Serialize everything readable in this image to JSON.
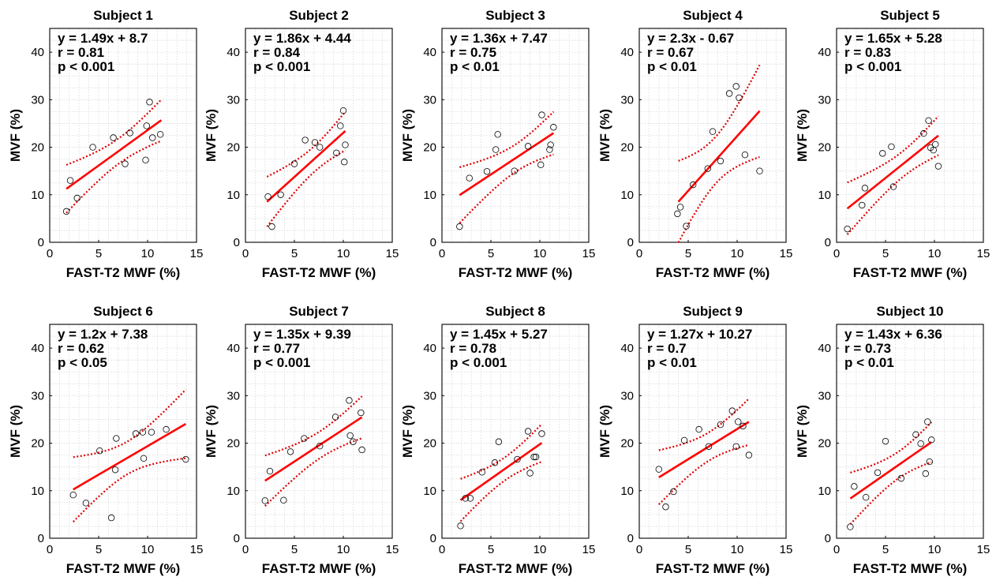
{
  "chart_data": [
    {
      "type": "scatter",
      "title": "Subject 1",
      "xlabel": "FAST-T2 MWF (%)",
      "ylabel": "MVF (%)",
      "xlim": [
        0,
        15
      ],
      "ylim": [
        0,
        45
      ],
      "xticks": [
        0,
        5,
        10,
        15
      ],
      "yticks": [
        0,
        10,
        20,
        30,
        40
      ],
      "equation": "y = 1.49x + 8.7",
      "r_text": "r = 0.81",
      "p_text": "p < 0.001",
      "slope": 1.49,
      "intercept": 8.7,
      "fit_x_range": [
        1.7,
        11.4
      ],
      "x": [
        1.7,
        2.1,
        2.8,
        4.4,
        6.5,
        7.7,
        8.2,
        9.8,
        9.9,
        10.2,
        10.5,
        11.3
      ],
      "y": [
        6.5,
        13,
        9.3,
        20,
        22,
        16.5,
        23,
        17.3,
        24.5,
        29.5,
        22,
        22.7
      ]
    },
    {
      "type": "scatter",
      "title": "Subject 2",
      "xlabel": "FAST-T2 MWF (%)",
      "ylabel": "MVF (%)",
      "xlim": [
        0,
        15
      ],
      "ylim": [
        0,
        45
      ],
      "xticks": [
        0,
        5,
        10,
        15
      ],
      "yticks": [
        0,
        10,
        20,
        30,
        40
      ],
      "equation": "y = 1.86x + 4.44",
      "r_text": "r = 0.84",
      "p_text": "p < 0.001",
      "slope": 1.86,
      "intercept": 4.44,
      "fit_x_range": [
        2.2,
        10.2
      ],
      "x": [
        2.3,
        2.7,
        3.6,
        5.0,
        6.1,
        7.1,
        7.6,
        9.3,
        9.7,
        10.0,
        10.1,
        10.2
      ],
      "y": [
        9.6,
        3.3,
        10,
        16.5,
        21.5,
        21,
        20,
        18.8,
        24.5,
        27.7,
        16.9,
        20.5
      ]
    },
    {
      "type": "scatter",
      "title": "Subject 3",
      "xlabel": "FAST-T2 MWF (%)",
      "ylabel": "MVF (%)",
      "xlim": [
        0,
        15
      ],
      "ylim": [
        0,
        45
      ],
      "xticks": [
        0,
        5,
        10,
        15
      ],
      "yticks": [
        0,
        10,
        20,
        30,
        40
      ],
      "equation": "y = 1.36x + 7.47",
      "r_text": "r = 0.75",
      "p_text": "p < 0.01",
      "slope": 1.36,
      "intercept": 7.47,
      "fit_x_range": [
        1.8,
        11.4
      ],
      "x": [
        1.8,
        2.8,
        4.6,
        5.5,
        5.7,
        7.4,
        8.8,
        10.1,
        10.2,
        11.0,
        11.1,
        11.4
      ],
      "y": [
        3.3,
        13.5,
        14.9,
        19.5,
        22.7,
        15,
        20.2,
        16.3,
        26.8,
        19.5,
        20.5,
        24.2
      ]
    },
    {
      "type": "scatter",
      "title": "Subject 4",
      "xlabel": "FAST-T2 MWF (%)",
      "ylabel": "MVF (%)",
      "xlim": [
        0,
        15
      ],
      "ylim": [
        0,
        45
      ],
      "xticks": [
        0,
        5,
        10,
        15
      ],
      "yticks": [
        0,
        10,
        20,
        30,
        40
      ],
      "equation": "y = 2.3x - 0.67",
      "r_text": "r = 0.67",
      "p_text": "p < 0.01",
      "slope": 2.3,
      "intercept": -0.67,
      "fit_x_range": [
        4.0,
        12.3
      ],
      "x": [
        3.9,
        4.2,
        4.8,
        5.5,
        7.0,
        7.5,
        8.3,
        9.2,
        9.9,
        10.2,
        10.8,
        12.3
      ],
      "y": [
        6.0,
        7.4,
        3.4,
        12.1,
        15.5,
        23.3,
        17.1,
        31.3,
        32.8,
        30.4,
        18.4,
        15.0
      ]
    },
    {
      "type": "scatter",
      "title": "Subject 5",
      "xlabel": "FAST-T2 MWF (%)",
      "ylabel": "MVF (%)",
      "xlim": [
        0,
        15
      ],
      "ylim": [
        0,
        45
      ],
      "xticks": [
        0,
        5,
        10,
        15
      ],
      "yticks": [
        0,
        10,
        20,
        30,
        40
      ],
      "equation": "y = 1.65x + 5.28",
      "r_text": "r = 0.83",
      "p_text": "p < 0.001",
      "slope": 1.65,
      "intercept": 5.28,
      "fit_x_range": [
        1.1,
        10.4
      ],
      "x": [
        1.1,
        2.6,
        2.9,
        4.7,
        5.6,
        5.8,
        8.9,
        9.4,
        9.6,
        9.9,
        10.1,
        10.4
      ],
      "y": [
        2.8,
        7.8,
        11.4,
        18.7,
        20.1,
        11.7,
        22.9,
        25.6,
        19.9,
        19.4,
        20.6,
        16
      ]
    },
    {
      "type": "scatter",
      "title": "Subject 6",
      "xlabel": "FAST-T2 MWF (%)",
      "ylabel": "MVF (%)",
      "xlim": [
        0,
        15
      ],
      "ylim": [
        0,
        45
      ],
      "xticks": [
        0,
        5,
        10,
        15
      ],
      "yticks": [
        0,
        10,
        20,
        30,
        40
      ],
      "equation": "y = 1.2x + 7.38",
      "r_text": "r = 0.62",
      "p_text": "p < 0.05",
      "slope": 1.2,
      "intercept": 7.38,
      "fit_x_range": [
        2.4,
        13.9
      ],
      "x": [
        2.4,
        3.7,
        5.1,
        6.3,
        6.7,
        6.8,
        8.8,
        9.5,
        9.6,
        10.4,
        11.9,
        13.9
      ],
      "y": [
        9.1,
        7.4,
        18.4,
        4.3,
        14.4,
        21,
        22,
        22.3,
        16.8,
        22.3,
        22.9,
        16.6
      ]
    },
    {
      "type": "scatter",
      "title": "Subject 7",
      "xlabel": "FAST-T2 MWF (%)",
      "ylabel": "MVF (%)",
      "xlim": [
        0,
        15
      ],
      "ylim": [
        0,
        45
      ],
      "xticks": [
        0,
        5,
        10,
        15
      ],
      "yticks": [
        0,
        10,
        20,
        30,
        40
      ],
      "equation": "y = 1.35x + 9.39",
      "r_text": "r = 0.77",
      "p_text": "p < 0.001",
      "slope": 1.35,
      "intercept": 9.39,
      "fit_x_range": [
        2.0,
        11.9
      ],
      "x": [
        2.0,
        2.5,
        3.9,
        4.6,
        6.0,
        7.6,
        9.2,
        10.6,
        10.7,
        11.0,
        11.8,
        11.9
      ],
      "y": [
        7.9,
        14.1,
        8.0,
        18.2,
        21,
        19.4,
        25.5,
        29,
        21.6,
        20.3,
        26.4,
        18.6
      ]
    },
    {
      "type": "scatter",
      "title": "Subject 8",
      "xlabel": "FAST-T2 MWF (%)",
      "ylabel": "MVF (%)",
      "xlim": [
        0,
        15
      ],
      "ylim": [
        0,
        45
      ],
      "xticks": [
        0,
        5,
        10,
        15
      ],
      "yticks": [
        0,
        10,
        20,
        30,
        40
      ],
      "equation": "y = 1.45x + 5.27",
      "r_text": "r = 0.78",
      "p_text": "p < 0.001",
      "slope": 1.45,
      "intercept": 5.27,
      "fit_x_range": [
        1.9,
        10.2
      ],
      "x": [
        1.9,
        2.4,
        2.9,
        4.1,
        5.4,
        5.8,
        7.7,
        8.8,
        9.0,
        9.4,
        9.6,
        10.2
      ],
      "y": [
        2.6,
        8.4,
        8.4,
        13.9,
        15.9,
        20.3,
        16.6,
        22.5,
        13.7,
        17.1,
        17.1,
        22
      ]
    },
    {
      "type": "scatter",
      "title": "Subject 9",
      "xlabel": "FAST-T2 MWF (%)",
      "ylabel": "MVF (%)",
      "xlim": [
        0,
        15
      ],
      "ylim": [
        0,
        45
      ],
      "xticks": [
        0,
        5,
        10,
        15
      ],
      "yticks": [
        0,
        10,
        20,
        30,
        40
      ],
      "equation": "y = 1.27x + 10.27",
      "r_text": "r = 0.7",
      "p_text": "p < 0.01",
      "slope": 1.27,
      "intercept": 10.27,
      "fit_x_range": [
        2.0,
        11.2
      ],
      "x": [
        2.0,
        2.7,
        3.5,
        4.6,
        6.1,
        7.1,
        8.3,
        9.5,
        9.9,
        10.1,
        10.6,
        11.2
      ],
      "y": [
        14.5,
        6.6,
        9.8,
        20.6,
        22.9,
        19.3,
        23.9,
        26.8,
        19.3,
        24.5,
        23.6,
        17.5
      ]
    },
    {
      "type": "scatter",
      "title": "Subject 10",
      "xlabel": "FAST-T2 MWF (%)",
      "ylabel": "MVF (%)",
      "xlim": [
        0,
        15
      ],
      "ylim": [
        0,
        45
      ],
      "xticks": [
        0,
        5,
        10,
        15
      ],
      "yticks": [
        0,
        10,
        20,
        30,
        40
      ],
      "equation": "y = 1.43x + 6.36",
      "r_text": "r = 0.73",
      "p_text": "p < 0.01",
      "slope": 1.43,
      "intercept": 6.36,
      "fit_x_range": [
        1.4,
        9.7
      ],
      "x": [
        1.4,
        1.8,
        3.0,
        4.2,
        5.0,
        6.6,
        8.1,
        8.6,
        9.1,
        9.3,
        9.5,
        9.7
      ],
      "y": [
        2.4,
        10.9,
        8.6,
        13.8,
        20.4,
        12.6,
        21.8,
        19.9,
        13.6,
        24.5,
        16.1,
        20.7
      ]
    }
  ],
  "colors": {
    "fit": "#ff0000",
    "ci": "#e00000",
    "marker": "#000000",
    "grid": "#d8d8d8",
    "text": "#000000"
  }
}
